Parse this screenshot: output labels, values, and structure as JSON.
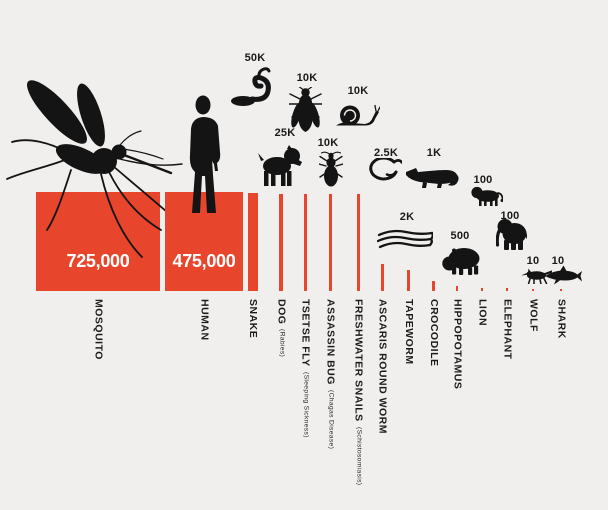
{
  "colors": {
    "background": "#f0efed",
    "bar": "#e8452d",
    "ink": "#141414",
    "bar_value_text": "#ffffff"
  },
  "chart_data": {
    "type": "bar",
    "style": "area-proportional pictorial bar chart, no axes, no gridlines, no legend",
    "categories": [
      "MOSQUITO",
      "HUMAN",
      "SNAKE",
      "DOG",
      "TSETSE FLY",
      "ASSASSIN BUG",
      "FRESHWATER SNAILS",
      "ASCARIS ROUND WORM",
      "TAPEWORM",
      "CROCODILE",
      "HIPPOPOTAMUS",
      "LION",
      "ELEPHANT",
      "WOLF",
      "SHARK"
    ],
    "values": [
      725000,
      475000,
      50000,
      25000,
      10000,
      10000,
      10000,
      2500,
      2000,
      1000,
      500,
      100,
      100,
      10,
      10
    ],
    "items": [
      {
        "name": "MOSQUITO",
        "sublabel": "",
        "value": 725000,
        "value_label": "725,000",
        "icon": "mosquito-icon"
      },
      {
        "name": "HUMAN",
        "sublabel": "",
        "value": 475000,
        "value_label": "475,000",
        "icon": "human-icon"
      },
      {
        "name": "SNAKE",
        "sublabel": "",
        "value": 50000,
        "value_label": "50K",
        "icon": "snake-icon"
      },
      {
        "name": "DOG",
        "sublabel": "(Rabies)",
        "value": 25000,
        "value_label": "25K",
        "icon": "dog-icon"
      },
      {
        "name": "TSETSE FLY",
        "sublabel": "(Sleeping Sickness)",
        "value": 10000,
        "value_label": "10K",
        "icon": "tsetse-fly-icon"
      },
      {
        "name": "ASSASSIN BUG",
        "sublabel": "(Chagas Disease)",
        "value": 10000,
        "value_label": "10K",
        "icon": "assassin-bug-icon"
      },
      {
        "name": "FRESHWATER SNAILS",
        "sublabel": "(Schistosomiasis)",
        "value": 10000,
        "value_label": "10K",
        "icon": "freshwater-snail-icon"
      },
      {
        "name": "ASCARIS ROUND WORM",
        "sublabel": "",
        "value": 2500,
        "value_label": "2.5K",
        "icon": "ascaris-worm-icon"
      },
      {
        "name": "TAPEWORM",
        "sublabel": "",
        "value": 2000,
        "value_label": "2K",
        "icon": "tapeworm-icon"
      },
      {
        "name": "CROCODILE",
        "sublabel": "",
        "value": 1000,
        "value_label": "1K",
        "icon": "crocodile-icon"
      },
      {
        "name": "HIPPOPOTAMUS",
        "sublabel": "",
        "value": 500,
        "value_label": "500",
        "icon": "hippopotamus-icon"
      },
      {
        "name": "LION",
        "sublabel": "",
        "value": 100,
        "value_label": "100",
        "icon": "lion-icon"
      },
      {
        "name": "ELEPHANT",
        "sublabel": "",
        "value": 100,
        "value_label": "100",
        "icon": "elephant-icon"
      },
      {
        "name": "WOLF",
        "sublabel": "",
        "value": 10,
        "value_label": "10",
        "icon": "wolf-icon"
      },
      {
        "name": "SHARK",
        "sublabel": "",
        "value": 10,
        "value_label": "10",
        "icon": "shark-icon"
      }
    ]
  }
}
